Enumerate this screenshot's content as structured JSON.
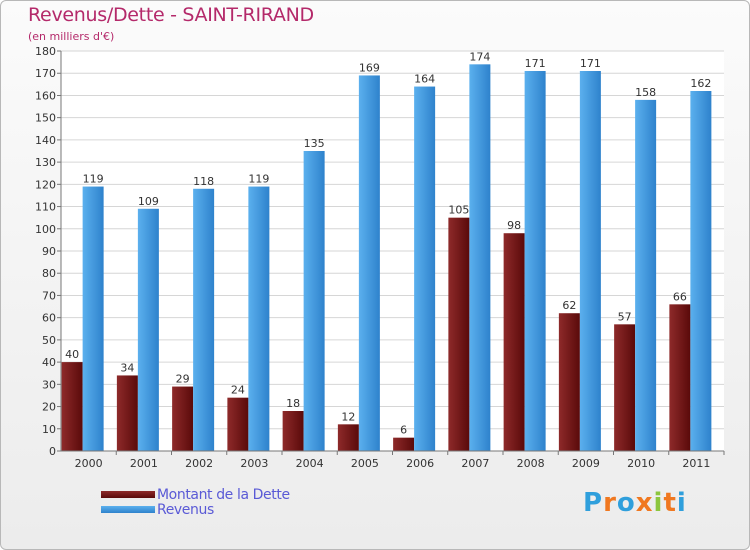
{
  "colors": {
    "title": "#b4296a",
    "dette_top": "#8e2a2a",
    "dette_bottom": "#5a0a0a",
    "revenus_top": "#5bb0ee",
    "revenus_bottom": "#2e82cc",
    "legend_text": "#5a5ad6",
    "brand_letters": [
      "#2f9fdc",
      "#f07820",
      "#2f9fdc",
      "#f07820",
      "#8cc63e",
      "#f07820"
    ]
  },
  "brand": {
    "letters": [
      "P",
      "r",
      "o",
      "x",
      "i",
      "t",
      "i"
    ]
  },
  "chart_data": {
    "type": "bar",
    "title": "Revenus/Dette - SAINT-RIRAND",
    "subtitle": "(en milliers d'€)",
    "xlabel": "",
    "ylabel": "",
    "ylim": [
      0,
      180
    ],
    "yticks": [
      0,
      10,
      20,
      30,
      40,
      50,
      60,
      70,
      80,
      90,
      100,
      110,
      120,
      130,
      140,
      150,
      160,
      170,
      180
    ],
    "grid": true,
    "legend_position": "bottom-left",
    "categories": [
      "2000",
      "2001",
      "2002",
      "2003",
      "2004",
      "2005",
      "2006",
      "2007",
      "2008",
      "2009",
      "2010",
      "2011"
    ],
    "series": [
      {
        "name": "Montant de la Dette",
        "values": [
          40,
          34,
          29,
          24,
          18,
          12,
          6,
          105,
          98,
          62,
          57,
          66
        ]
      },
      {
        "name": "Revenus",
        "values": [
          119,
          109,
          118,
          119,
          135,
          169,
          164,
          174,
          171,
          171,
          158,
          162
        ]
      }
    ]
  }
}
